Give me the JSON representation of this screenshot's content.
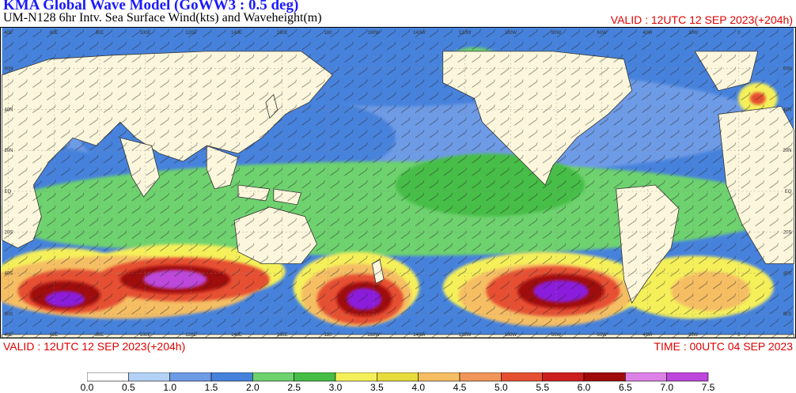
{
  "title": {
    "line1": "KMA  Global Wave Model (GoWW3 : 0.5 deg)",
    "line2": "UM-N128  6hr Intv. Sea Surface Wind(kts) and Waveheight(m)"
  },
  "valid_top": "VALID : 12UTC 12 SEP 2023(+204h)",
  "valid_bottom": "VALID : 12UTC 12 SEP 2023(+204h)",
  "time_bottom": "TIME : 00UTC 04 SEP 2023",
  "colorbar": {
    "labels": [
      "0.0",
      "0.5",
      "1.0",
      "1.5",
      "2.0",
      "2.5",
      "3.0",
      "3.5",
      "4.0",
      "4.5",
      "5.0",
      "5.5",
      "6.0",
      "6.5",
      "7.0",
      "7.5"
    ],
    "colors": [
      "#ffffff",
      "#b4d2f5",
      "#6e9be6",
      "#4682dc",
      "#6ed26e",
      "#46be46",
      "#f5f05a",
      "#e6dc3c",
      "#f5be64",
      "#f0965a",
      "#e65032",
      "#cd1e1e",
      "#a00a0a",
      "#dc82e6",
      "#be46dc",
      "#8c1edc"
    ]
  },
  "map": {
    "land_color": "#fcf7dc",
    "lat_labels": [
      "60N",
      "40N",
      "20N",
      "EQ",
      "20S",
      "40S",
      "60S"
    ],
    "lon_labels": [
      "40E",
      "60E",
      "80E",
      "100E",
      "120E",
      "140E",
      "160E",
      "180",
      "160W",
      "140W",
      "120W",
      "100W",
      "80W",
      "60W",
      "40W",
      "20W",
      "0"
    ]
  }
}
